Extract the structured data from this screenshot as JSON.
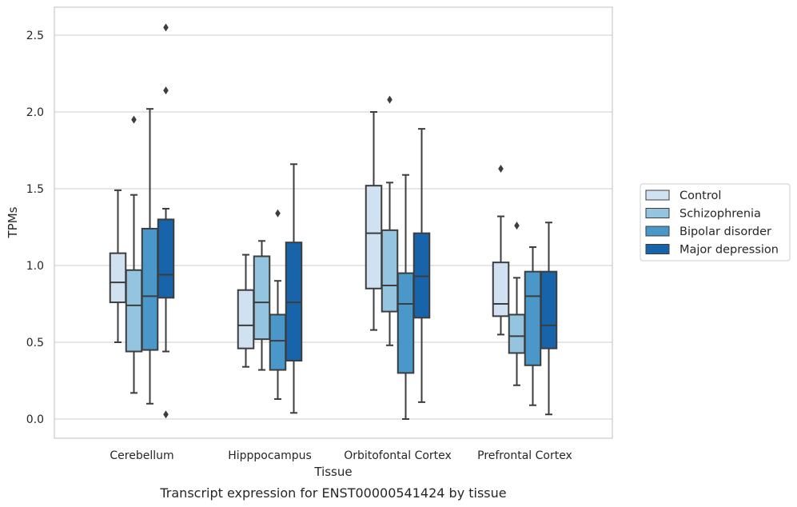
{
  "chart_data": {
    "type": "box",
    "xlabel": "Tissue",
    "ylabel": "TPMs",
    "ylim": [
      -0.12,
      2.68
    ],
    "yticks": [
      0.0,
      0.5,
      1.0,
      1.5,
      2.0,
      2.5
    ],
    "ytick_labels": [
      "0.0",
      "0.5",
      "1.0",
      "1.5",
      "2.0",
      "2.5"
    ],
    "grid": "horizontal",
    "legend_position": "right",
    "categories": [
      "Cerebellum",
      "Hipppocampus",
      "Orbitofontal Cortex",
      "Prefrontal Cortex"
    ],
    "series": [
      {
        "name": "Control",
        "color": "#d0e1f2",
        "boxes": [
          {
            "whislo": 0.5,
            "q1": 0.76,
            "med": 0.89,
            "q3": 1.08,
            "whishi": 1.49,
            "fliers": []
          },
          {
            "whislo": 0.34,
            "q1": 0.46,
            "med": 0.61,
            "q3": 0.84,
            "whishi": 1.07,
            "fliers": []
          },
          {
            "whislo": 0.58,
            "q1": 0.85,
            "med": 1.21,
            "q3": 1.52,
            "whishi": 2.0,
            "fliers": []
          },
          {
            "whislo": 0.55,
            "q1": 0.67,
            "med": 0.75,
            "q3": 1.02,
            "whishi": 1.32,
            "fliers": [
              1.63
            ]
          }
        ]
      },
      {
        "name": "Schizophrenia",
        "color": "#94c4df",
        "boxes": [
          {
            "whislo": 0.17,
            "q1": 0.44,
            "med": 0.74,
            "q3": 0.97,
            "whishi": 1.46,
            "fliers": [
              1.95
            ]
          },
          {
            "whislo": 0.32,
            "q1": 0.52,
            "med": 0.76,
            "q3": 1.06,
            "whishi": 1.16,
            "fliers": []
          },
          {
            "whislo": 0.48,
            "q1": 0.7,
            "med": 0.87,
            "q3": 1.23,
            "whishi": 1.54,
            "fliers": [
              2.08
            ]
          },
          {
            "whislo": 0.22,
            "q1": 0.43,
            "med": 0.54,
            "q3": 0.68,
            "whishi": 0.92,
            "fliers": [
              1.26
            ]
          }
        ]
      },
      {
        "name": "Bipolar disorder",
        "color": "#4a98c9",
        "boxes": [
          {
            "whislo": 0.1,
            "q1": 0.45,
            "med": 0.8,
            "q3": 1.24,
            "whishi": 2.02,
            "fliers": []
          },
          {
            "whislo": 0.13,
            "q1": 0.32,
            "med": 0.51,
            "q3": 0.68,
            "whishi": 0.9,
            "fliers": [
              1.34
            ]
          },
          {
            "whislo": 0.0,
            "q1": 0.3,
            "med": 0.75,
            "q3": 0.95,
            "whishi": 1.59,
            "fliers": []
          },
          {
            "whislo": 0.09,
            "q1": 0.35,
            "med": 0.8,
            "q3": 0.96,
            "whishi": 1.12,
            "fliers": []
          }
        ]
      },
      {
        "name": "Major depression",
        "color": "#1764ab",
        "boxes": [
          {
            "whislo": 0.44,
            "q1": 0.79,
            "med": 0.94,
            "q3": 1.3,
            "whishi": 1.37,
            "fliers": [
              0.03,
              2.14,
              2.55
            ]
          },
          {
            "whislo": 0.04,
            "q1": 0.38,
            "med": 0.76,
            "q3": 1.15,
            "whishi": 1.66,
            "fliers": []
          },
          {
            "whislo": 0.11,
            "q1": 0.66,
            "med": 0.93,
            "q3": 1.21,
            "whishi": 1.89,
            "fliers": []
          },
          {
            "whislo": 0.03,
            "q1": 0.46,
            "med": 0.61,
            "q3": 0.96,
            "whishi": 1.28,
            "fliers": []
          }
        ]
      }
    ]
  },
  "caption": "Transcript expression for ENST00000541424 by tissue",
  "colors": {
    "grid": "#cccccc",
    "frame": "#cccccc",
    "box_edge": "#3d3d3d",
    "text": "#262626"
  }
}
